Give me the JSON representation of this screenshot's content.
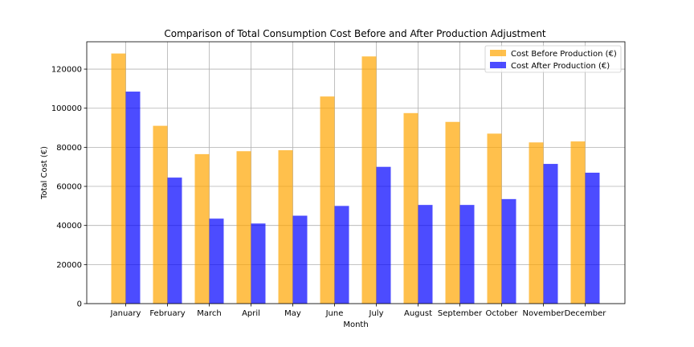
{
  "chart_data": {
    "type": "bar",
    "title": "Comparison of Total Consumption Cost Before and After Production Adjustment",
    "xlabel": "Month",
    "ylabel": "Total Cost (€)",
    "categories": [
      "January",
      "February",
      "March",
      "April",
      "May",
      "June",
      "July",
      "August",
      "September",
      "October",
      "November",
      "December"
    ],
    "series": [
      {
        "name": "Cost Before Production (€)",
        "color": "#FFA500",
        "values": [
          128000,
          91000,
          76500,
          78000,
          78500,
          106000,
          126500,
          97500,
          93000,
          87000,
          82500,
          83000
        ]
      },
      {
        "name": "Cost After Production (€)",
        "color": "#0000FF",
        "values": [
          108500,
          64500,
          43500,
          41000,
          45000,
          50000,
          70000,
          50500,
          50500,
          53500,
          71500,
          67000
        ]
      }
    ],
    "ylim": [
      0,
      134000
    ],
    "yticks": [
      0,
      20000,
      40000,
      60000,
      80000,
      100000,
      120000
    ],
    "grid": true,
    "legend_position": "top-right"
  }
}
